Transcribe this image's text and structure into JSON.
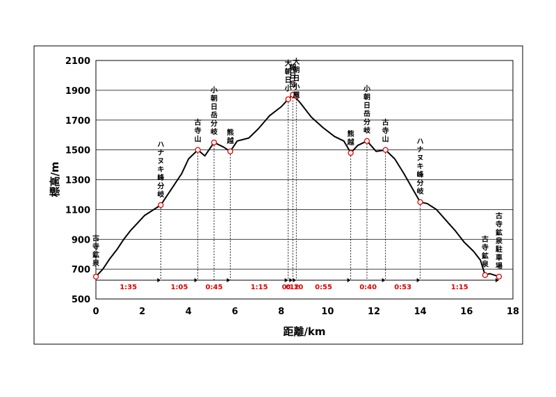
{
  "chart_data": {
    "type": "line",
    "xlabel": "距離/km",
    "ylabel": "標高/m",
    "xlim": [
      0,
      18
    ],
    "ylim": [
      500,
      2100
    ],
    "x_ticks": [
      0,
      2,
      4,
      6,
      8,
      10,
      12,
      14,
      16,
      18
    ],
    "y_ticks": [
      500,
      700,
      900,
      1100,
      1300,
      1500,
      1700,
      1900,
      2100
    ],
    "grid": "horizontal",
    "profile": [
      [
        0,
        650
      ],
      [
        0.3,
        700
      ],
      [
        0.6,
        770
      ],
      [
        0.9,
        830
      ],
      [
        1.2,
        900
      ],
      [
        1.5,
        960
      ],
      [
        1.8,
        1010
      ],
      [
        2.1,
        1060
      ],
      [
        2.4,
        1090
      ],
      [
        2.8,
        1130
      ],
      [
        3.1,
        1200
      ],
      [
        3.4,
        1270
      ],
      [
        3.7,
        1340
      ],
      [
        4.0,
        1440
      ],
      [
        4.4,
        1500
      ],
      [
        4.7,
        1460
      ],
      [
        5.1,
        1550
      ],
      [
        5.5,
        1520
      ],
      [
        5.8,
        1490
      ],
      [
        6.1,
        1560
      ],
      [
        6.6,
        1580
      ],
      [
        7.0,
        1640
      ],
      [
        7.5,
        1730
      ],
      [
        8.0,
        1790
      ],
      [
        8.3,
        1840
      ],
      [
        8.5,
        1870
      ],
      [
        8.8,
        1820
      ],
      [
        9.3,
        1720
      ],
      [
        9.8,
        1650
      ],
      [
        10.3,
        1590
      ],
      [
        10.7,
        1560
      ],
      [
        11.0,
        1480
      ],
      [
        11.3,
        1530
      ],
      [
        11.7,
        1560
      ],
      [
        12.1,
        1490
      ],
      [
        12.5,
        1500
      ],
      [
        12.9,
        1440
      ],
      [
        13.3,
        1340
      ],
      [
        13.7,
        1230
      ],
      [
        14.0,
        1150
      ],
      [
        14.3,
        1140
      ],
      [
        14.7,
        1100
      ],
      [
        15.1,
        1030
      ],
      [
        15.5,
        960
      ],
      [
        15.9,
        880
      ],
      [
        16.3,
        820
      ],
      [
        16.6,
        760
      ],
      [
        16.8,
        660
      ],
      [
        17.0,
        670
      ],
      [
        17.4,
        650
      ]
    ],
    "waypoints": [
      {
        "name": "古寺鉱泉",
        "x": 0,
        "y": 650,
        "drop": false
      },
      {
        "name": "ハナヌキ峰分岐",
        "x": 2.8,
        "y": 1130,
        "drop": true
      },
      {
        "name": "古寺山",
        "x": 4.4,
        "y": 1500,
        "drop": true
      },
      {
        "name": "小朝日岳分岐",
        "x": 5.1,
        "y": 1550,
        "drop": true
      },
      {
        "name": "熊越",
        "x": 5.8,
        "y": 1490,
        "drop": true
      },
      {
        "name": "大朝日小",
        "x": 8.3,
        "y": 1840,
        "drop": true
      },
      {
        "name": "朝日岳",
        "x": 8.5,
        "y": 1870,
        "drop": true
      },
      {
        "name": "大朝日小屋",
        "x": 8.65,
        "y": 1860,
        "drop": true
      },
      {
        "name": "熊越",
        "x": 11.0,
        "y": 1480,
        "drop": true
      },
      {
        "name": "小朝日岳分岐",
        "x": 11.7,
        "y": 1560,
        "drop": true
      },
      {
        "name": "古寺山",
        "x": 12.5,
        "y": 1500,
        "drop": true
      },
      {
        "name": "ハナヌキ峰分岐",
        "x": 14.0,
        "y": 1150,
        "drop": true
      },
      {
        "name": "古寺鉱泉",
        "x": 16.8,
        "y": 660,
        "drop": false
      },
      {
        "name": "古寺鉱泉駐車場",
        "x": 17.4,
        "y": 650,
        "drop": false
      }
    ],
    "segments": [
      {
        "from": 0,
        "to": 2.8,
        "time": "1:35"
      },
      {
        "from": 2.8,
        "to": 4.4,
        "time": "1:05"
      },
      {
        "from": 4.4,
        "to": 5.8,
        "time": "0:45"
      },
      {
        "from": 5.8,
        "to": 8.3,
        "time": "1:15"
      },
      {
        "from": 8.3,
        "to": 8.5,
        "time": "0:12"
      },
      {
        "from": 8.5,
        "to": 8.65,
        "time": "0:10"
      },
      {
        "from": 8.65,
        "to": 11.0,
        "time": "0:55"
      },
      {
        "from": 11.0,
        "to": 12.5,
        "time": "0:40"
      },
      {
        "from": 12.5,
        "to": 14.0,
        "time": "0:53"
      },
      {
        "from": 14.0,
        "to": 17.4,
        "time": "1:15"
      }
    ],
    "colors": {
      "line": "#000000",
      "marker": "#e00000",
      "time": "#e00000",
      "grid": "#000000"
    }
  }
}
